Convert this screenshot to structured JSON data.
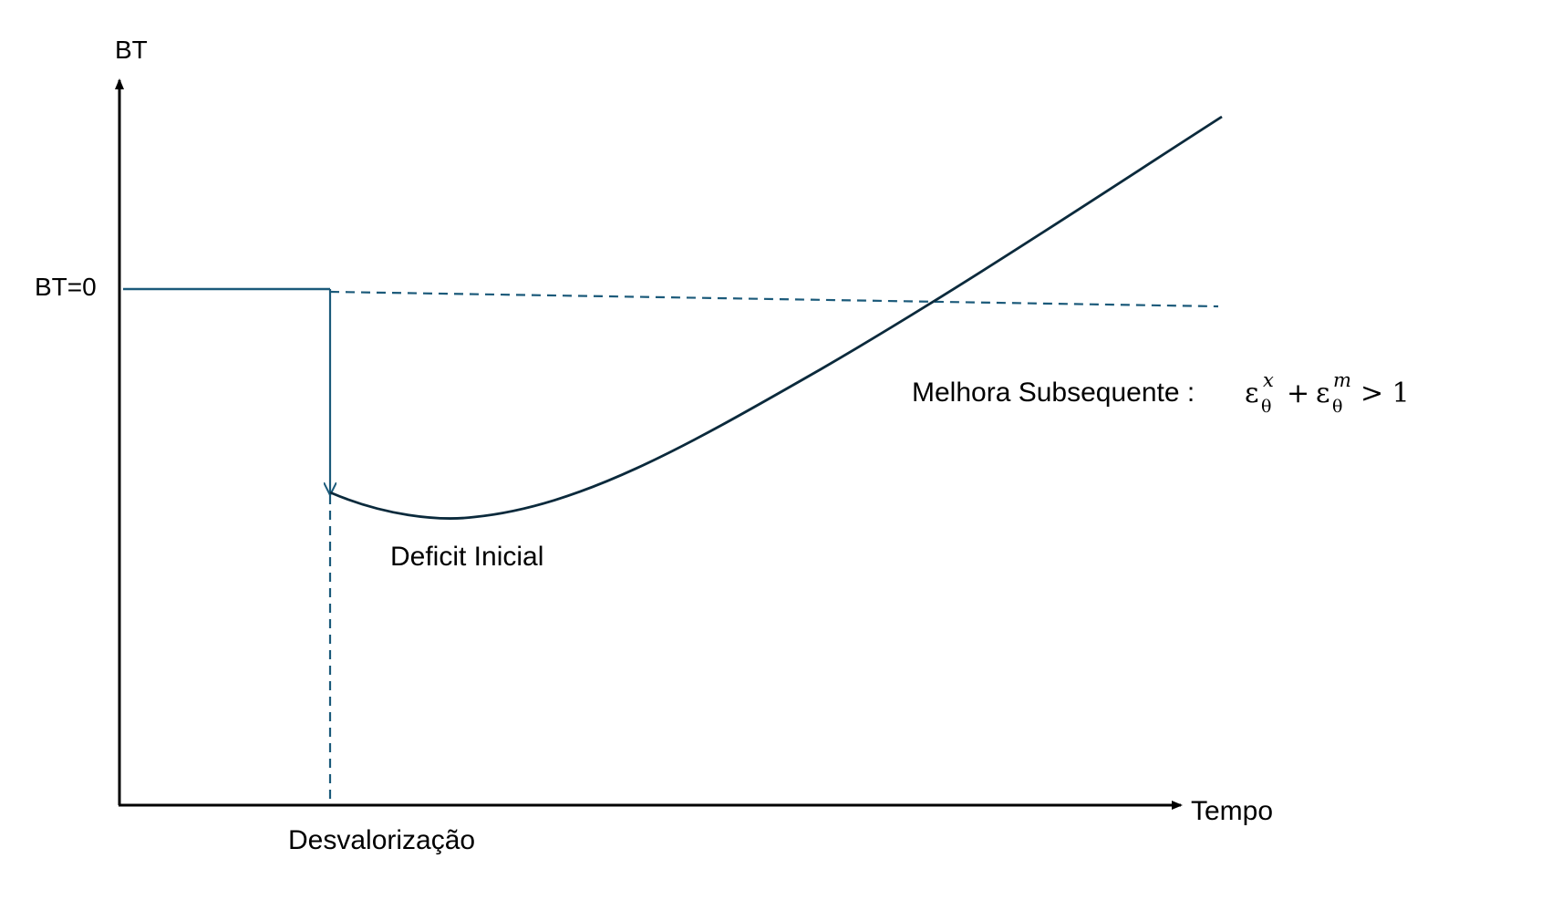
{
  "labels": {
    "y_axis": "BT",
    "x_axis": "Tempo",
    "baseline": "BT=0",
    "devaluation": "Desvalorização",
    "initial_deficit": "Deficit Inicial",
    "improvement": "Melhora Subsequente :",
    "condition": {
      "epsilon1": "ε",
      "sub1": "θ",
      "sup1": "x",
      "plus": "+",
      "epsilon2": "ε",
      "sub2": "θ",
      "sup2": "m",
      "gt": "> 1"
    }
  },
  "colors": {
    "axis": "#000000",
    "curve": "#0b2a3c",
    "reference": "#1b5a7a"
  }
}
